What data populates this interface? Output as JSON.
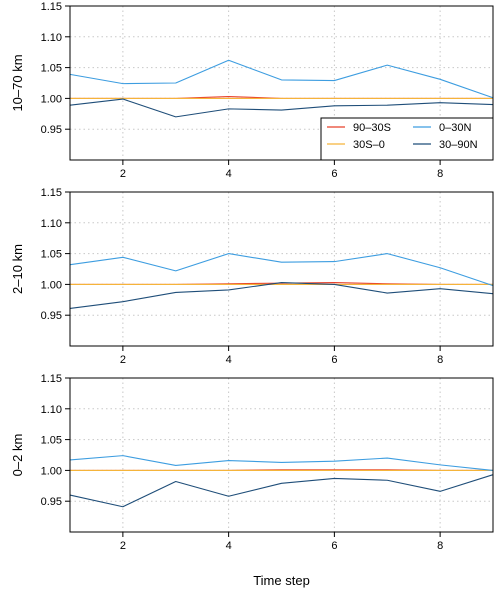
{
  "chart_data": [
    {
      "type": "line",
      "ylabel": "10–70 km",
      "xlim": [
        1,
        9
      ],
      "ylim": [
        0.9,
        1.15
      ],
      "xticks": [
        2,
        4,
        6,
        8
      ],
      "yticks": [
        0.95,
        1.0,
        1.05,
        1.1,
        1.15
      ],
      "ytick_labels": [
        "0.95",
        "1.00",
        "1.05",
        "1.10",
        "1.15"
      ],
      "grid": true,
      "legend": {
        "placement": "bottom-right",
        "columns": 2
      },
      "x": [
        1,
        2,
        3,
        4,
        5,
        6,
        7,
        8,
        9
      ],
      "series": [
        {
          "name": "90–30S",
          "color": "#e8412b",
          "values": [
            1.0,
            1.0,
            1.0,
            1.003,
            1.0,
            1.0,
            1.0,
            1.0,
            1.0
          ]
        },
        {
          "name": "30S–0",
          "color": "#f5b43a",
          "values": [
            1.0,
            1.0,
            1.0,
            1.0,
            1.0,
            1.0,
            1.0,
            1.0,
            1.0
          ]
        },
        {
          "name": "0–30N",
          "color": "#3d9de0",
          "values": [
            1.039,
            1.024,
            1.025,
            1.062,
            1.03,
            1.029,
            1.054,
            1.031,
            1.001
          ]
        },
        {
          "name": "30–90N",
          "color": "#1f4e79",
          "values": [
            0.989,
            0.999,
            0.97,
            0.983,
            0.981,
            0.988,
            0.989,
            0.993,
            0.99
          ]
        }
      ]
    },
    {
      "type": "line",
      "ylabel": "2–10 km",
      "xlim": [
        1,
        9
      ],
      "ylim": [
        0.9,
        1.15
      ],
      "xticks": [
        2,
        4,
        6,
        8
      ],
      "yticks": [
        0.95,
        1.0,
        1.05,
        1.1,
        1.15
      ],
      "ytick_labels": [
        "0.95",
        "1.00",
        "1.05",
        "1.10",
        "1.15"
      ],
      "grid": true,
      "x": [
        1,
        2,
        3,
        4,
        5,
        6,
        7,
        8,
        9
      ],
      "series": [
        {
          "name": "90–30S",
          "color": "#e8412b",
          "values": [
            1.0,
            1.0,
            1.0,
            1.001,
            1.002,
            1.003,
            1.001,
            1.0,
            1.0
          ]
        },
        {
          "name": "30S–0",
          "color": "#f5b43a",
          "values": [
            1.0,
            1.0,
            1.0,
            1.0,
            1.0,
            1.0,
            1.0,
            1.0,
            1.0
          ]
        },
        {
          "name": "0–30N",
          "color": "#3d9de0",
          "values": [
            1.032,
            1.044,
            1.022,
            1.05,
            1.036,
            1.037,
            1.05,
            1.027,
            0.998
          ]
        },
        {
          "name": "30–90N",
          "color": "#1f4e79",
          "values": [
            0.961,
            0.972,
            0.987,
            0.991,
            1.003,
            1.0,
            0.986,
            0.993,
            0.985
          ]
        }
      ]
    },
    {
      "type": "line",
      "ylabel": "0–2 km",
      "xlabel": "Time step",
      "xlim": [
        1,
        9
      ],
      "ylim": [
        0.9,
        1.15
      ],
      "xticks": [
        2,
        4,
        6,
        8
      ],
      "yticks": [
        0.95,
        1.0,
        1.05,
        1.1,
        1.15
      ],
      "ytick_labels": [
        "0.95",
        "1.00",
        "1.05",
        "1.10",
        "1.15"
      ],
      "grid": true,
      "x": [
        1,
        2,
        3,
        4,
        5,
        6,
        7,
        8,
        9
      ],
      "series": [
        {
          "name": "90–30S",
          "color": "#e8412b",
          "values": [
            1.0,
            1.0,
            1.0,
            1.0,
            1.001,
            1.001,
            1.001,
            1.0,
            1.0
          ]
        },
        {
          "name": "30S–0",
          "color": "#f5b43a",
          "values": [
            1.0,
            1.0,
            1.0,
            1.0,
            1.0,
            1.0,
            1.0,
            1.0,
            1.0
          ]
        },
        {
          "name": "0–30N",
          "color": "#3d9de0",
          "values": [
            1.017,
            1.024,
            1.008,
            1.016,
            1.013,
            1.015,
            1.02,
            1.009,
            1.0
          ]
        },
        {
          "name": "30–90N",
          "color": "#1f4e79",
          "values": [
            0.96,
            0.941,
            0.982,
            0.958,
            0.979,
            0.987,
            0.984,
            0.966,
            0.993
          ]
        }
      ]
    }
  ]
}
